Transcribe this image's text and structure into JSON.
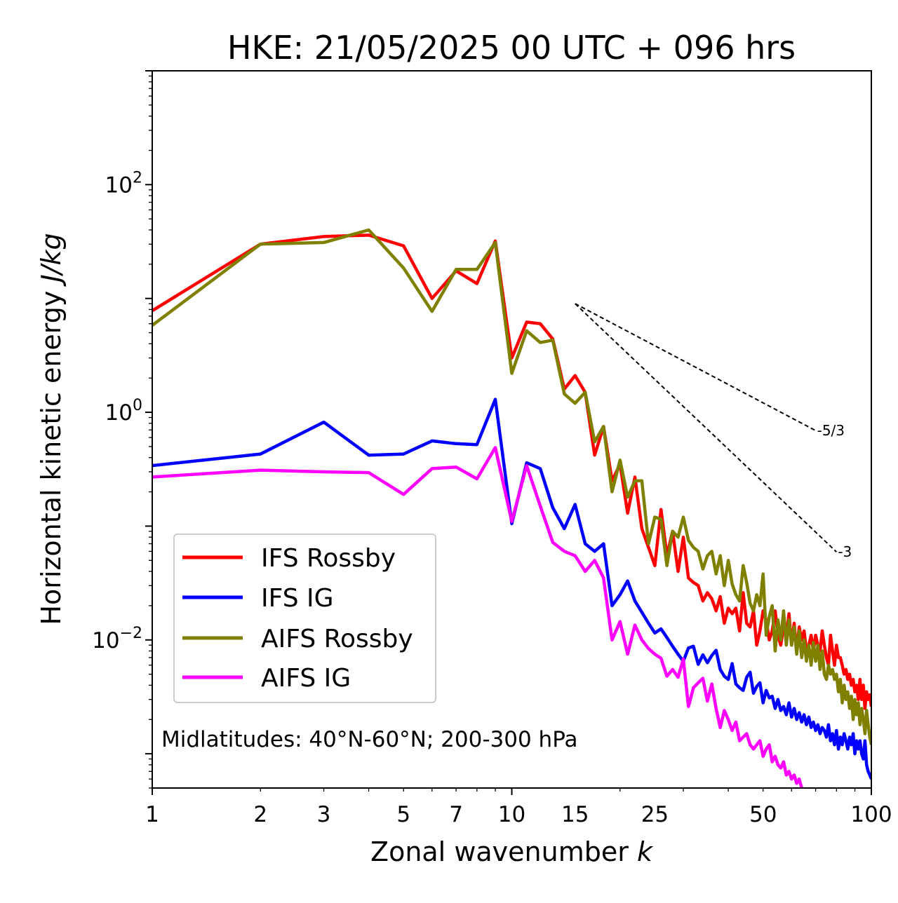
{
  "chart_data": {
    "type": "line",
    "title": "HKE: 21/05/2025 00 UTC + 096 hrs",
    "xlabel_text": "Zonal wavenumber ",
    "xlabel_var": "k",
    "ylabel_text": "Horizontal kinetic energy ",
    "ylabel_unit": "J/kg",
    "x_scale": "log",
    "y_scale": "log",
    "xlim": [
      1,
      100
    ],
    "ylim": [
      0.0005,
      1000
    ],
    "x_ticks": [
      1,
      2,
      3,
      5,
      7,
      10,
      15,
      25,
      50,
      100
    ],
    "x_tick_labels": [
      "1",
      "2",
      "3",
      "5",
      "7",
      "10",
      "15",
      "25",
      "50",
      "100"
    ],
    "y_ticks": [
      {
        "value": 100,
        "base": "10",
        "exp": "2"
      },
      {
        "value": 1,
        "base": "10",
        "exp": "0"
      },
      {
        "value": 0.01,
        "base": "10",
        "exp": "−2"
      }
    ],
    "grid": false,
    "legend_position": "lower-left",
    "annotation": "Midlatitudes: 40°N-60°N; 200-300 hPa",
    "reference_slopes": [
      {
        "label": "-5/3",
        "exponent": -1.6667,
        "x_start": 15,
        "x_end": 70,
        "y_start": 9.0
      },
      {
        "label": "-3",
        "exponent": -3,
        "x_start": 15,
        "x_end": 80,
        "y_start": 9.0
      }
    ],
    "series": [
      {
        "name": "IFS Rossby",
        "color": "#ff0000",
        "x": [
          1,
          2,
          3,
          4,
          5,
          6,
          7,
          8,
          9,
          10,
          11,
          12,
          13,
          14,
          15,
          16,
          17,
          18,
          19,
          20,
          21,
          22,
          23,
          24,
          25,
          26,
          27,
          28,
          29,
          30,
          31,
          32,
          33,
          34,
          35,
          36,
          37,
          38,
          39,
          40,
          41,
          42,
          43,
          44,
          45,
          46,
          47,
          48,
          49,
          50,
          51,
          52,
          53,
          54,
          55,
          56,
          57,
          58,
          59,
          60,
          61,
          62,
          63,
          64,
          65,
          66,
          67,
          68,
          69,
          70,
          71,
          72,
          73,
          74,
          75,
          76,
          77,
          78,
          79,
          80,
          81,
          82,
          83,
          84,
          85,
          86,
          87,
          88,
          89,
          90,
          91,
          92,
          93,
          94,
          95,
          96,
          97,
          98,
          99,
          100
        ],
        "y": [
          7.8,
          30,
          35,
          36,
          29,
          10,
          17.5,
          13.5,
          32,
          3.0,
          6.2,
          6.0,
          4.4,
          1.6,
          2.1,
          1.5,
          0.42,
          0.75,
          0.25,
          0.35,
          0.13,
          0.27,
          0.095,
          0.065,
          0.045,
          0.14,
          0.055,
          0.09,
          0.04,
          0.08,
          0.035,
          0.032,
          0.03,
          0.022,
          0.026,
          0.023,
          0.018,
          0.024,
          0.014,
          0.019,
          0.017,
          0.019,
          0.012,
          0.026,
          0.014,
          0.013,
          0.018,
          0.009,
          0.012,
          0.018,
          0.015,
          0.01,
          0.012,
          0.018,
          0.011,
          0.009,
          0.013,
          0.011,
          0.017,
          0.009,
          0.014,
          0.008,
          0.013,
          0.01,
          0.012,
          0.008,
          0.009,
          0.011,
          0.008,
          0.011,
          0.009,
          0.008,
          0.012,
          0.009,
          0.007,
          0.006,
          0.011,
          0.008,
          0.006,
          0.009,
          0.007,
          0.007,
          0.006,
          0.005,
          0.0055,
          0.0045,
          0.005,
          0.004,
          0.0045,
          0.0035,
          0.004,
          0.003,
          0.0045,
          0.003,
          0.004,
          0.0025,
          0.0035,
          0.003,
          0.0033,
          0.0026
        ]
      },
      {
        "name": "IFS IG",
        "color": "#0000ff",
        "x": [
          1,
          2,
          3,
          4,
          5,
          6,
          7,
          8,
          9,
          10,
          11,
          12,
          13,
          14,
          15,
          16,
          17,
          18,
          19,
          20,
          21,
          22,
          23,
          24,
          25,
          26,
          27,
          28,
          29,
          30,
          31,
          32,
          33,
          34,
          35,
          36,
          37,
          38,
          39,
          40,
          41,
          42,
          43,
          44,
          45,
          46,
          47,
          48,
          49,
          50,
          51,
          52,
          53,
          54,
          55,
          56,
          57,
          58,
          59,
          60,
          61,
          62,
          63,
          64,
          65,
          66,
          67,
          68,
          69,
          70,
          71,
          72,
          73,
          74,
          75,
          76,
          77,
          78,
          79,
          80,
          81,
          82,
          83,
          84,
          85,
          86,
          87,
          88,
          89,
          90,
          91,
          92,
          93,
          94,
          95,
          96,
          97,
          98,
          99,
          100
        ],
        "y": [
          0.34,
          0.43,
          0.82,
          0.42,
          0.43,
          0.56,
          0.53,
          0.52,
          1.3,
          0.105,
          0.36,
          0.32,
          0.145,
          0.095,
          0.155,
          0.07,
          0.06,
          0.07,
          0.02,
          0.025,
          0.033,
          0.022,
          0.0175,
          0.014,
          0.0115,
          0.0125,
          0.0105,
          0.0088,
          0.0075,
          0.0065,
          0.0085,
          0.0088,
          0.0061,
          0.0074,
          0.0063,
          0.0073,
          0.0081,
          0.0055,
          0.0048,
          0.0045,
          0.0062,
          0.0041,
          0.0038,
          0.0036,
          0.0047,
          0.0052,
          0.0034,
          0.0039,
          0.0042,
          0.0028,
          0.0036,
          0.0031,
          0.0032,
          0.0025,
          0.003,
          0.0024,
          0.0026,
          0.0022,
          0.0028,
          0.0021,
          0.0025,
          0.002,
          0.0023,
          0.0019,
          0.0022,
          0.0018,
          0.0021,
          0.0017,
          0.0019,
          0.0016,
          0.0018,
          0.0015,
          0.0017,
          0.0016,
          0.0014,
          0.0018,
          0.0013,
          0.0015,
          0.0012,
          0.0016,
          0.0011,
          0.0014,
          0.0012,
          0.0015,
          0.0013,
          0.0011,
          0.0014,
          0.0012,
          0.0015,
          0.001,
          0.0013,
          0.0011,
          0.0013,
          0.001,
          0.0009,
          0.0013,
          0.0008,
          0.0007,
          0.00065,
          0.0006
        ]
      },
      {
        "name": "AIFS Rossby",
        "color": "#808000",
        "x": [
          1,
          2,
          3,
          4,
          5,
          6,
          7,
          8,
          9,
          10,
          11,
          12,
          13,
          14,
          15,
          16,
          17,
          18,
          19,
          20,
          21,
          22,
          23,
          24,
          25,
          26,
          27,
          28,
          29,
          30,
          31,
          32,
          33,
          34,
          35,
          36,
          37,
          38,
          39,
          40,
          41,
          42,
          43,
          44,
          45,
          46,
          47,
          48,
          49,
          50,
          51,
          52,
          53,
          54,
          55,
          56,
          57,
          58,
          59,
          60,
          61,
          62,
          63,
          64,
          65,
          66,
          67,
          68,
          69,
          70,
          71,
          72,
          73,
          74,
          75,
          76,
          77,
          78,
          79,
          80,
          81,
          82,
          83,
          84,
          85,
          86,
          87,
          88,
          89,
          90,
          91,
          92,
          93,
          94,
          95,
          96,
          97,
          98,
          99,
          100
        ],
        "y": [
          5.8,
          30,
          31,
          40,
          18.5,
          7.7,
          18,
          18,
          31,
          2.2,
          5.2,
          4.1,
          4.3,
          1.45,
          1.2,
          1.5,
          0.55,
          0.75,
          0.2,
          0.38,
          0.18,
          0.25,
          0.25,
          0.07,
          0.12,
          0.115,
          0.045,
          0.09,
          0.08,
          0.12,
          0.075,
          0.065,
          0.06,
          0.042,
          0.055,
          0.06,
          0.038,
          0.055,
          0.03,
          0.05,
          0.031,
          0.025,
          0.022,
          0.045,
          0.032,
          0.021,
          0.018,
          0.025,
          0.02,
          0.038,
          0.011,
          0.016,
          0.02,
          0.008,
          0.015,
          0.01,
          0.018,
          0.009,
          0.015,
          0.009,
          0.013,
          0.0075,
          0.012,
          0.007,
          0.01,
          0.0065,
          0.009,
          0.006,
          0.0095,
          0.0065,
          0.009,
          0.0055,
          0.008,
          0.005,
          0.0045,
          0.006,
          0.005,
          0.0055,
          0.0045,
          0.005,
          0.0035,
          0.0045,
          0.0028,
          0.004,
          0.003,
          0.0035,
          0.0025,
          0.0032,
          0.002,
          0.003,
          0.0022,
          0.0028,
          0.0018,
          0.0025,
          0.002,
          0.0015,
          0.0024,
          0.0018,
          0.0014,
          0.0012
        ]
      },
      {
        "name": "AIFS IG",
        "color": "#ff00ff",
        "x": [
          1,
          2,
          3,
          4,
          5,
          6,
          7,
          8,
          9,
          10,
          11,
          12,
          13,
          14,
          15,
          16,
          17,
          18,
          19,
          20,
          21,
          22,
          23,
          24,
          25,
          26,
          27,
          28,
          29,
          30,
          31,
          32,
          33,
          34,
          35,
          36,
          37,
          38,
          39,
          40,
          41,
          42,
          43,
          44,
          45,
          46,
          47,
          48,
          49,
          50,
          51,
          52,
          53,
          54,
          55,
          56,
          57,
          58,
          59,
          60,
          61,
          62,
          63,
          64,
          65,
          66
        ],
        "y": [
          0.27,
          0.31,
          0.3,
          0.295,
          0.19,
          0.32,
          0.33,
          0.26,
          0.49,
          0.11,
          0.34,
          0.15,
          0.072,
          0.06,
          0.055,
          0.04,
          0.05,
          0.035,
          0.01,
          0.0145,
          0.0075,
          0.0135,
          0.01,
          0.0084,
          0.0075,
          0.0069,
          0.0048,
          0.0055,
          0.0047,
          0.0068,
          0.0026,
          0.0038,
          0.0042,
          0.0046,
          0.0029,
          0.0041,
          0.0025,
          0.0017,
          0.0024,
          0.002,
          0.0016,
          0.0019,
          0.0013,
          0.0014,
          0.0015,
          0.0012,
          0.0011,
          0.0012,
          0.0013,
          0.00095,
          0.0011,
          0.0012,
          0.00085,
          0.00095,
          0.0008,
          0.00075,
          0.00085,
          0.00065,
          0.0007,
          0.0006,
          0.00065,
          0.00055,
          0.0006,
          0.0005,
          0.00045,
          0.0005
        ]
      }
    ]
  }
}
